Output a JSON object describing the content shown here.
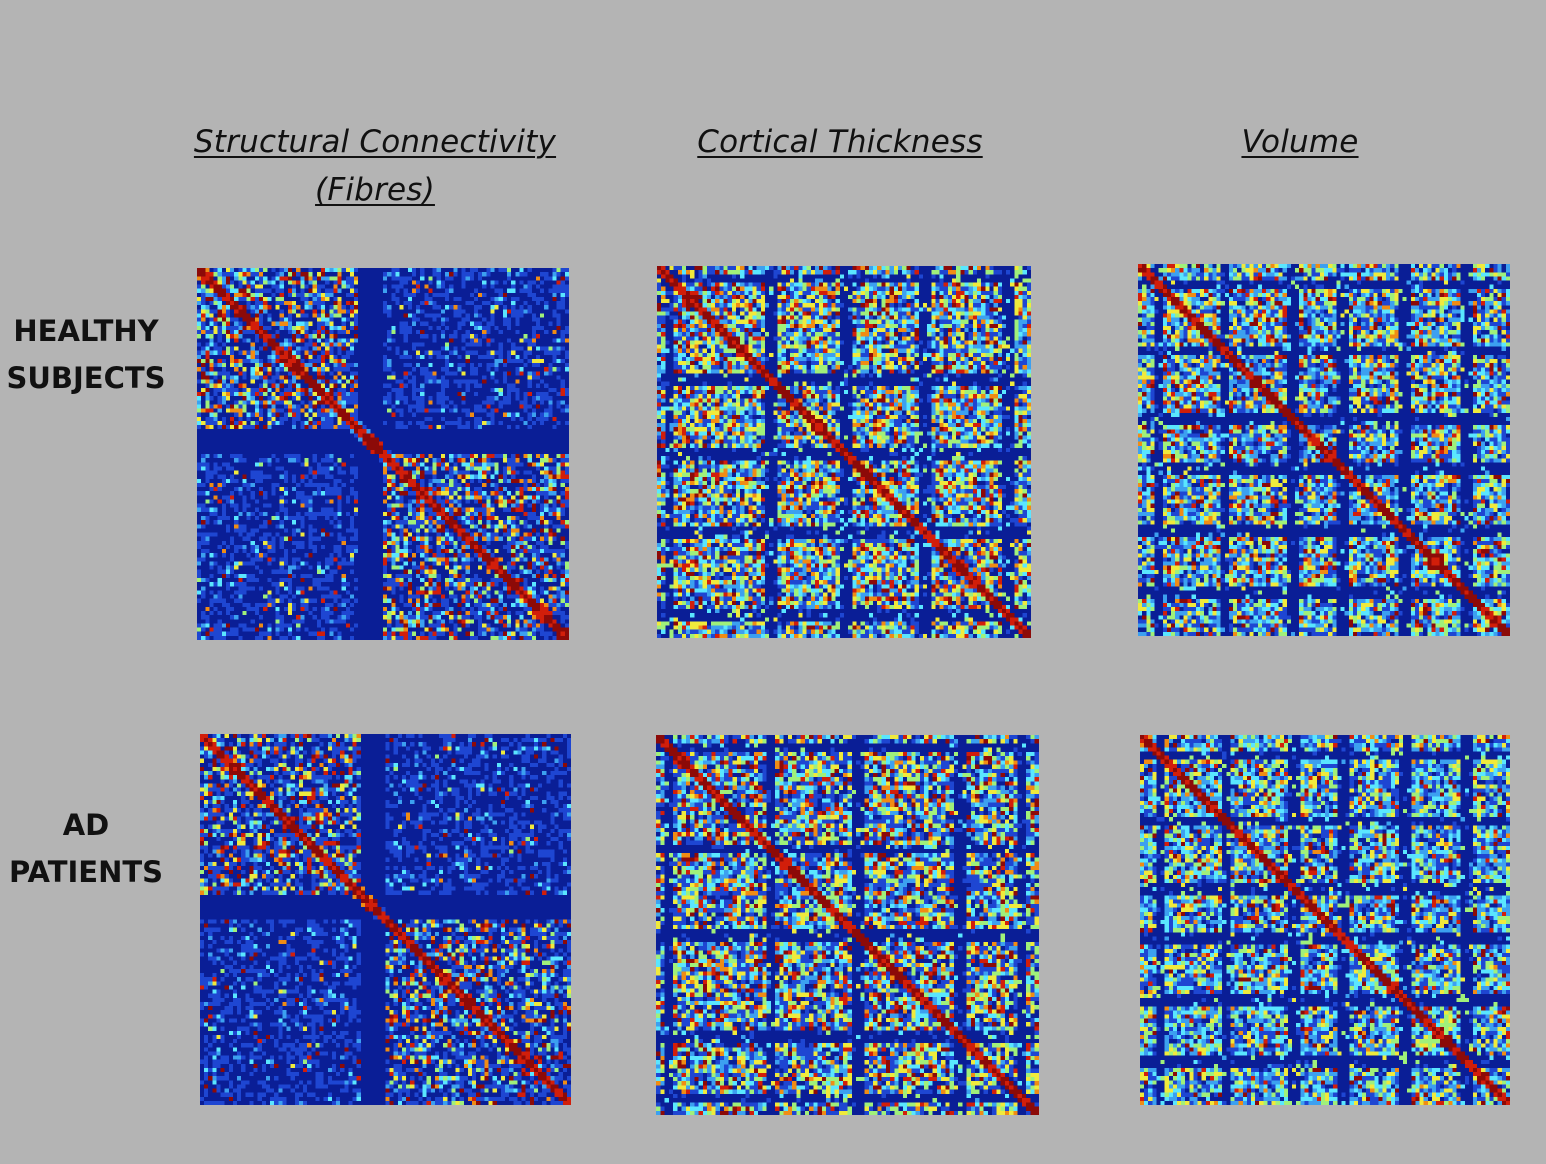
{
  "columns": {
    "structural": {
      "line1": "Structural Connectivity",
      "line2": "(Fibres)"
    },
    "thickness": {
      "line1": "Cortical Thickness"
    },
    "volume": {
      "line1": "Volume"
    }
  },
  "rows": {
    "healthy": {
      "line1": "HEALTHY",
      "line2": "SUBJECTS"
    },
    "ad": {
      "line1": "AD",
      "line2": "PATIENTS"
    }
  },
  "colormap": [
    "#0a1e96",
    "#1e46d2",
    "#3ca0f0",
    "#5ae6ff",
    "#a0f07a",
    "#f0ea3c",
    "#f08c14",
    "#d21e0a",
    "#8c0a08"
  ],
  "matrix_grid_size": 90
}
